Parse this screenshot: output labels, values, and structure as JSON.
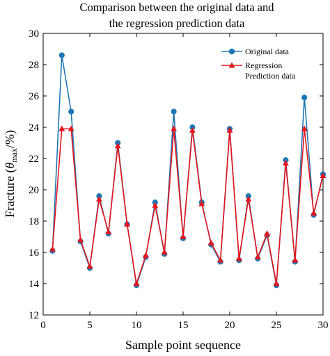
{
  "chart_data": {
    "type": "line",
    "title": [
      "Comparison between the original data and",
      "the regression prediction data"
    ],
    "xlabel": "Sample point sequence",
    "ylabel": "Fracture (θmax/%)",
    "ylabel_parts": {
      "prefix": "Fracture (",
      "symbol": "θ",
      "subscript": "max",
      "suffix": "/%)"
    },
    "xlim": [
      0,
      30
    ],
    "ylim": [
      12,
      30
    ],
    "xticks": [
      0,
      5,
      10,
      15,
      20,
      25,
      30
    ],
    "yticks": [
      12,
      14,
      16,
      18,
      20,
      22,
      24,
      26,
      28,
      30
    ],
    "grid": false,
    "legend_position": "top-right",
    "x": [
      1,
      2,
      3,
      4,
      5,
      6,
      7,
      8,
      9,
      10,
      11,
      12,
      13,
      14,
      15,
      16,
      17,
      18,
      19,
      20,
      21,
      22,
      23,
      24,
      25,
      26,
      27,
      28,
      29,
      30
    ],
    "series": [
      {
        "name": "Original data",
        "color": "#1f77b4",
        "marker": "circle",
        "values": [
          16.1,
          28.6,
          25.0,
          16.7,
          15.0,
          19.6,
          17.2,
          23.0,
          17.8,
          13.9,
          15.7,
          19.2,
          15.9,
          25.0,
          16.9,
          24.0,
          19.2,
          16.5,
          15.4,
          23.9,
          15.5,
          19.6,
          15.6,
          17.1,
          13.9,
          21.9,
          15.4,
          25.9,
          18.4,
          21.0
        ]
      },
      {
        "name": "Regression Prediction data",
        "legend_lines": [
          "Regression",
          "Prediction data"
        ],
        "color": "#e8141b",
        "marker": "triangle",
        "values": [
          16.2,
          23.9,
          23.9,
          16.8,
          15.1,
          19.4,
          17.3,
          22.8,
          17.8,
          14.0,
          15.8,
          19.0,
          16.0,
          23.9,
          17.0,
          23.8,
          19.1,
          16.6,
          15.5,
          23.8,
          15.6,
          19.4,
          15.7,
          17.2,
          14.0,
          21.7,
          15.5,
          23.9,
          18.5,
          20.9
        ]
      }
    ]
  }
}
